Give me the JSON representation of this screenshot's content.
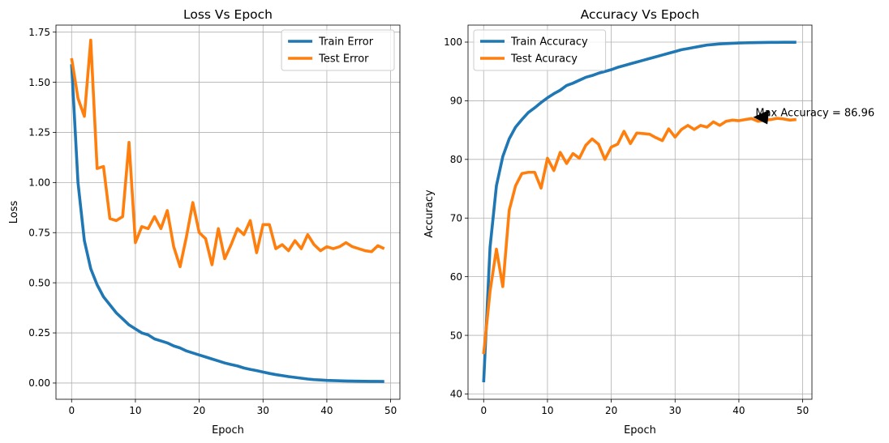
{
  "chart_data": [
    {
      "type": "line",
      "title": "Loss Vs Epoch",
      "xlabel": "Epoch",
      "ylabel": "Loss",
      "xlim": [
        -2.45,
        51.45
      ],
      "ylim": [
        -0.081,
        1.785
      ],
      "xticks": [
        0,
        10,
        20,
        30,
        40,
        50
      ],
      "xtick_labels": [
        "0",
        "10",
        "20",
        "30",
        "40",
        "50"
      ],
      "yticks": [
        0.0,
        0.25,
        0.5,
        0.75,
        1.0,
        1.25,
        1.5,
        1.75
      ],
      "ytick_labels": [
        "0.00",
        "0.25",
        "0.50",
        "0.75",
        "1.00",
        "1.25",
        "1.50",
        "1.75"
      ],
      "grid": true,
      "legend_position": "upper right",
      "series": [
        {
          "name": "Train Error",
          "color": "#1f77b4",
          "values": [
            1.59,
            1.0,
            0.71,
            0.57,
            0.49,
            0.43,
            0.39,
            0.35,
            0.32,
            0.29,
            0.27,
            0.25,
            0.24,
            0.22,
            0.21,
            0.2,
            0.185,
            0.175,
            0.16,
            0.15,
            0.14,
            0.13,
            0.12,
            0.11,
            0.1,
            0.092,
            0.085,
            0.075,
            0.068,
            0.062,
            0.055,
            0.048,
            0.042,
            0.037,
            0.032,
            0.028,
            0.024,
            0.02,
            0.017,
            0.015,
            0.013,
            0.012,
            0.011,
            0.01,
            0.0095,
            0.009,
            0.0085,
            0.008,
            0.008,
            0.0075
          ]
        },
        {
          "name": "Test Error",
          "color": "#ff7f0e",
          "values": [
            1.62,
            1.42,
            1.33,
            1.71,
            1.07,
            1.08,
            0.82,
            0.81,
            0.83,
            1.2,
            0.7,
            0.78,
            0.77,
            0.83,
            0.77,
            0.86,
            0.68,
            0.58,
            0.73,
            0.9,
            0.75,
            0.72,
            0.59,
            0.77,
            0.62,
            0.69,
            0.77,
            0.74,
            0.81,
            0.65,
            0.79,
            0.79,
            0.67,
            0.69,
            0.66,
            0.71,
            0.67,
            0.74,
            0.69,
            0.66,
            0.68,
            0.67,
            0.68,
            0.7,
            0.68,
            0.67,
            0.66,
            0.655,
            0.685,
            0.67
          ]
        }
      ]
    },
    {
      "type": "line",
      "title": "Accuracy Vs Epoch",
      "xlabel": "Epoch",
      "ylabel": "Accuracy",
      "xlim": [
        -2.45,
        51.45
      ],
      "ylim": [
        39.1,
        102.9
      ],
      "xticks": [
        0,
        10,
        20,
        30,
        40,
        50
      ],
      "xtick_labels": [
        "0",
        "10",
        "20",
        "30",
        "40",
        "50"
      ],
      "yticks": [
        40,
        50,
        60,
        70,
        80,
        90,
        100
      ],
      "ytick_labels": [
        "40",
        "50",
        "60",
        "70",
        "80",
        "90",
        "100"
      ],
      "grid": true,
      "legend_position": "upper left",
      "annotation": {
        "text": "Max Accuracy = 86.96",
        "xy": [
          42,
          87.2
        ],
        "xytext": [
          42.6,
          87.2
        ]
      },
      "series": [
        {
          "name": "Train Accuracy",
          "color": "#1f77b4",
          "values": [
            42,
            65,
            75.5,
            80.5,
            83.5,
            85.5,
            86.8,
            88.0,
            88.8,
            89.7,
            90.5,
            91.2,
            91.8,
            92.6,
            93.0,
            93.5,
            94.0,
            94.3,
            94.7,
            95.0,
            95.3,
            95.7,
            96.0,
            96.3,
            96.6,
            96.9,
            97.2,
            97.5,
            97.8,
            98.1,
            98.4,
            98.7,
            98.9,
            99.1,
            99.3,
            99.5,
            99.6,
            99.7,
            99.75,
            99.8,
            99.85,
            99.88,
            99.9,
            99.92,
            99.94,
            99.95,
            99.96,
            99.97,
            99.98,
            99.98
          ]
        },
        {
          "name": "Test Acuracy",
          "color": "#ff7f0e",
          "values": [
            46.8,
            57.5,
            64.7,
            58.3,
            71.3,
            75.5,
            77.6,
            77.8,
            77.8,
            75.1,
            80.2,
            78.1,
            81.2,
            79.3,
            81.0,
            80.2,
            82.4,
            83.5,
            82.6,
            80.0,
            82.1,
            82.6,
            84.8,
            82.7,
            84.5,
            84.4,
            84.3,
            83.7,
            83.2,
            85.2,
            83.8,
            85.1,
            85.8,
            85.1,
            85.8,
            85.5,
            86.4,
            85.8,
            86.5,
            86.7,
            86.6,
            86.8,
            86.96,
            86.5,
            86.7,
            86.8,
            87.0,
            86.9,
            86.7,
            86.8
          ]
        }
      ]
    }
  ]
}
